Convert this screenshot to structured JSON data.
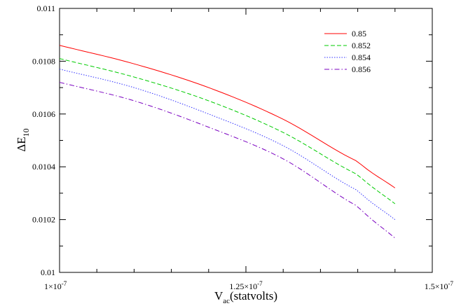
{
  "chart_data": {
    "type": "line",
    "title": "",
    "xlabel": {
      "main": "V",
      "sub": "ac",
      "rest": "(statvolts)"
    },
    "ylabel": {
      "main": "ΔE",
      "sub": "10"
    },
    "xlim": [
      1e-07,
      1.5e-07
    ],
    "ylim": [
      0.01,
      0.011
    ],
    "x_ticks": [
      {
        "value": 1e-07,
        "mant": "1×10",
        "exp": "-7"
      },
      {
        "value": 1.25e-07,
        "mant": "1.25×10",
        "exp": "-7"
      },
      {
        "value": 1.5e-07,
        "mant": "1.5×10",
        "exp": "-7"
      }
    ],
    "y_ticks": [
      {
        "value": 0.01,
        "label": "0.01"
      },
      {
        "value": 0.0102,
        "label": "0.0102"
      },
      {
        "value": 0.0104,
        "label": "0.0104"
      },
      {
        "value": 0.0106,
        "label": "0.0106"
      },
      {
        "value": 0.0108,
        "label": "0.0108"
      },
      {
        "value": 0.011,
        "label": "0.011"
      }
    ],
    "grid": false,
    "legend_position": "top-right",
    "series": [
      {
        "name": "0.85",
        "color": "#ff0000",
        "dash": "solid",
        "x": [
          1e-07,
          1.1e-07,
          1.2e-07,
          1.3e-07,
          1.4e-07,
          1.45e-07
        ],
        "y": [
          0.01086,
          0.01079,
          0.0107,
          0.01058,
          0.01042,
          0.01032
        ]
      },
      {
        "name": "0.852",
        "color": "#00cc00",
        "dash": "dashed",
        "x": [
          1e-07,
          1.1e-07,
          1.2e-07,
          1.3e-07,
          1.4e-07,
          1.45e-07
        ],
        "y": [
          0.01081,
          0.01074,
          0.01065,
          0.01053,
          0.01037,
          0.01026
        ]
      },
      {
        "name": "0.854",
        "color": "#3333ff",
        "dash": "dotted",
        "x": [
          1e-07,
          1.1e-07,
          1.2e-07,
          1.3e-07,
          1.4e-07,
          1.45e-07
        ],
        "y": [
          0.01077,
          0.0107,
          0.0106,
          0.01048,
          0.01031,
          0.0102
        ]
      },
      {
        "name": "0.856",
        "color": "#7a00c0",
        "dash": "dashdot",
        "x": [
          1e-07,
          1.1e-07,
          1.2e-07,
          1.3e-07,
          1.4e-07,
          1.45e-07
        ],
        "y": [
          0.01072,
          0.01065,
          0.01055,
          0.01043,
          0.01025,
          0.01013
        ]
      }
    ]
  }
}
